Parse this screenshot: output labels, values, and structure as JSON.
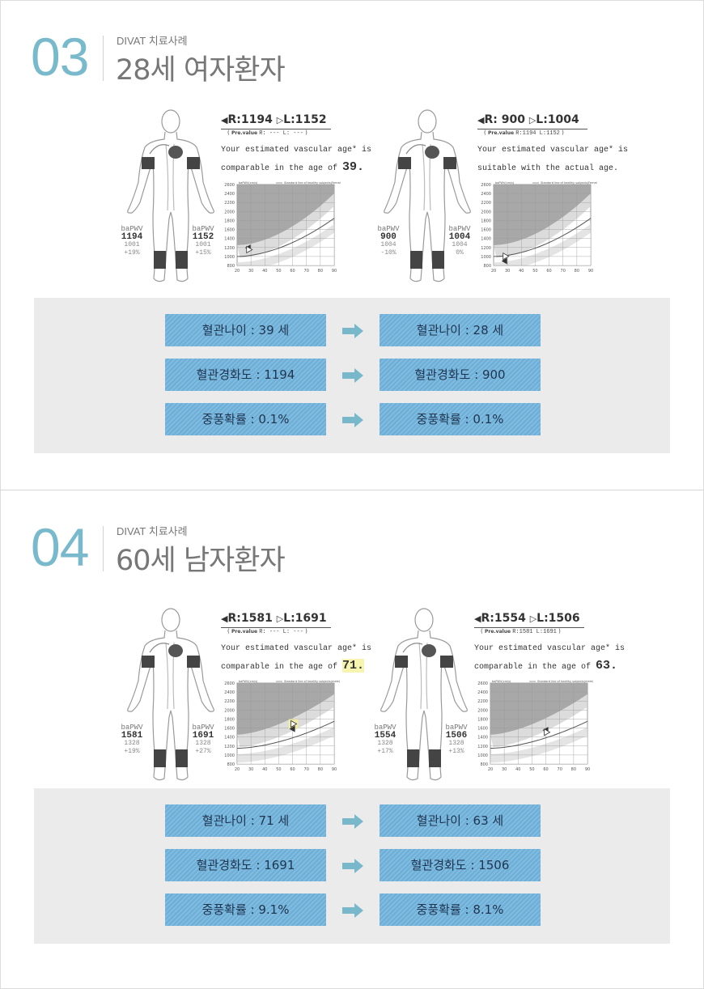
{
  "colors": {
    "number": "#78b9cc",
    "result_box": "#7fbce0",
    "arrow": "#79b7cb",
    "panel": "#ebebeb"
  },
  "sections": [
    {
      "number": "03",
      "subtitle": "DIVAT 치료사례",
      "title": "28세 여자환자",
      "reports": [
        {
          "r_label": "R:1194",
          "l_label": "L:1152",
          "pre_label": "Pre.value",
          "pre_values": "R: --- L: ---",
          "sentence1": "Your estimated vascular age* is",
          "sentence2": "comparable in the age of",
          "age": "39.",
          "age_highlight": false,
          "right_pwv": {
            "label": "baPWV",
            "value": "1194",
            "ref": "1001",
            "pct": "+19%"
          },
          "left_pwv": {
            "label": "baPWV",
            "value": "1152",
            "ref": "1001",
            "pct": "+15%"
          },
          "chart": {
            "ylabel": "baPWV(cm/s)",
            "legend": "Standard line of healthy subjects(Female)",
            "sex": "female",
            "yticks": [
              800,
              1000,
              1200,
              1400,
              1600,
              1800,
              2000,
              2200,
              2400,
              2600
            ],
            "xticks": [
              20,
              30,
              40,
              50,
              60,
              70,
              80,
              90
            ],
            "right_marker": [
              28,
              1194
            ],
            "left_marker": [
              28,
              1152
            ],
            "highlight": false
          }
        },
        {
          "r_label": "R: 900",
          "l_label": "L:1004",
          "pre_label": "Pre.value",
          "pre_values": "R:1194 L:1152",
          "sentence1": "Your estimated vascular age* is",
          "sentence2": "suitable with the actual age.",
          "age": "",
          "age_highlight": false,
          "right_pwv": {
            "label": "baPWV",
            "value": "900",
            "ref": "1004",
            "pct": "-10%"
          },
          "left_pwv": {
            "label": "baPWV",
            "value": "1004",
            "ref": "1004",
            "pct": "0%"
          },
          "chart": {
            "ylabel": "baPWV(cm/s)",
            "legend": "Standard line of healthy subjects(Female)",
            "sex": "female",
            "yticks": [
              800,
              1000,
              1200,
              1400,
              1600,
              1800,
              2000,
              2200,
              2400,
              2600
            ],
            "xticks": [
              20,
              30,
              40,
              50,
              60,
              70,
              80,
              90
            ],
            "right_marker": [
              28,
              900
            ],
            "left_marker": [
              28,
              1004
            ],
            "highlight": false
          }
        }
      ],
      "results": [
        {
          "before": "혈관나이 : 39 세",
          "after": "혈관나이 : 28 세"
        },
        {
          "before": "혈관경화도 : 1194",
          "after": "혈관경화도 : 900"
        },
        {
          "before": "중풍확률 : 0.1%",
          "after": "중풍확률 : 0.1%"
        }
      ]
    },
    {
      "number": "04",
      "subtitle": "DIVAT 치료사례",
      "title": "60세 남자환자",
      "reports": [
        {
          "r_label": "R:1581",
          "l_label": "L:1691",
          "pre_label": "Pre.value",
          "pre_values": "R: --- L: ---",
          "sentence1": "Your estimated vascular age* is",
          "sentence2": "comparable in the age of",
          "age": "71.",
          "age_highlight": true,
          "right_pwv": {
            "label": "baPWV",
            "value": "1581",
            "ref": "1328",
            "pct": "+19%"
          },
          "left_pwv": {
            "label": "baPWV",
            "value": "1691",
            "ref": "1328",
            "pct": "+27%"
          },
          "chart": {
            "ylabel": "baPWV(cm/s)",
            "legend": "Standard line of healthy subjects(male)",
            "sex": "male",
            "yticks": [
              800,
              1000,
              1200,
              1400,
              1600,
              1800,
              2000,
              2200,
              2400,
              2600
            ],
            "xticks": [
              20,
              30,
              40,
              50,
              60,
              70,
              80,
              90
            ],
            "right_marker": [
              60,
              1581
            ],
            "left_marker": [
              60,
              1691
            ],
            "highlight": true
          }
        },
        {
          "r_label": "R:1554",
          "l_label": "L:1506",
          "pre_label": "Pre.value",
          "pre_values": "R:1581 L:1691",
          "sentence1": "Your estimated vascular age* is",
          "sentence2": "comparable in the age of",
          "age": "63.",
          "age_highlight": false,
          "right_pwv": {
            "label": "baPWV",
            "value": "1554",
            "ref": "1328",
            "pct": "+17%"
          },
          "left_pwv": {
            "label": "baPWV",
            "value": "1506",
            "ref": "1328",
            "pct": "+13%"
          },
          "chart": {
            "ylabel": "baPWV(cm/s)",
            "legend": "Standard line of healthy subjects(male)",
            "sex": "male",
            "yticks": [
              800,
              1000,
              1200,
              1400,
              1600,
              1800,
              2000,
              2200,
              2400,
              2600
            ],
            "xticks": [
              20,
              30,
              40,
              50,
              60,
              70,
              80,
              90
            ],
            "right_marker": [
              60,
              1554
            ],
            "left_marker": [
              60,
              1506
            ],
            "highlight": false
          }
        }
      ],
      "results": [
        {
          "before": "혈관나이 : 71 세",
          "after": "혈관나이 : 63 세"
        },
        {
          "before": "혈관경화도 : 1691",
          "after": "혈관경화도 : 1506"
        },
        {
          "before": "중풍확률 : 9.1%",
          "after": "중풍확률 : 8.1%"
        }
      ]
    }
  ]
}
